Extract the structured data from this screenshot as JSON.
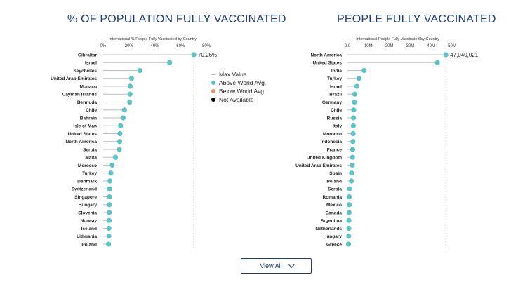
{
  "colors": {
    "above": "#5cc3c6",
    "below": "#e89466",
    "na": "#000000",
    "title": "#1f3c7a",
    "stem": "#bdbdbd",
    "maxline": "#cccccc"
  },
  "legend": {
    "items": [
      {
        "label": "Max Value",
        "kind": "max"
      },
      {
        "label": "Above World Avg.",
        "kind": "above"
      },
      {
        "label": "Below World Avg.",
        "kind": "below"
      },
      {
        "label": "Not Available",
        "kind": "na"
      }
    ]
  },
  "view_all": {
    "label": "View All",
    "icon": "chevron-down-icon"
  },
  "chart_data": [
    {
      "type": "lollipop",
      "title": "% OF POPULATION FULLY VACCINATED",
      "axis_caption": "International % People Fully Vaccinated by Country",
      "ticks": [
        "0%",
        "20%",
        "40%",
        "60%",
        "80%"
      ],
      "tick_values": [
        0,
        20,
        40,
        60,
        80
      ],
      "xlim": [
        0,
        80
      ],
      "max_value": 70.26,
      "max_label": "70.26%",
      "categories": [
        "Gibraltar",
        "Israel",
        "Seychelles",
        "United Arab Emirates",
        "Monaco",
        "Cayman Islands",
        "Bermuda",
        "Chile",
        "Bahrain",
        "Isle of Man",
        "United States",
        "North America",
        "Serbia",
        "Malta",
        "Morocco",
        "Turkey",
        "Denmark",
        "Switzerland",
        "Singapore",
        "Hungary",
        "Slovenia",
        "Norway",
        "Iceland",
        "Lithuania",
        "Poland"
      ],
      "values": [
        70.26,
        51.5,
        28.5,
        22.0,
        21.0,
        20.8,
        20.5,
        16.5,
        15.5,
        13.5,
        13.0,
        12.8,
        12.5,
        9.5,
        7.0,
        6.0,
        5.2,
        5.0,
        4.9,
        4.8,
        4.7,
        4.6,
        4.5,
        4.4,
        4.2
      ]
    },
    {
      "type": "lollipop",
      "title": "PEOPLE FULLY VACCINATED",
      "axis_caption": "International People Fully Vaccinated by Country",
      "ticks": [
        "0.0",
        "10M",
        "20M",
        "30M",
        "40M",
        "50M"
      ],
      "tick_values": [
        0,
        10000000,
        20000000,
        30000000,
        40000000,
        50000000
      ],
      "xlim": [
        0,
        50000000
      ],
      "max_value": 47040021,
      "max_label": "47,040,021",
      "categories": [
        "North America",
        "United States",
        "India",
        "Turkey",
        "Israel",
        "Brazil",
        "Germany",
        "Chile",
        "Russia",
        "Italy",
        "Morocco",
        "Indonesia",
        "France",
        "United Kingdom",
        "United Arab Emirates",
        "Spain",
        "Poland",
        "Serbia",
        "Romania",
        "Mexico",
        "Canada",
        "Argentina",
        "Netherlands",
        "Hungary",
        "Greece"
      ],
      "values": [
        47040021,
        43000000,
        8000000,
        5500000,
        4500000,
        3500000,
        3300000,
        3000000,
        2900000,
        2800000,
        2700000,
        2600000,
        2500000,
        2400000,
        2300000,
        2000000,
        1900000,
        1000000,
        900000,
        900000,
        800000,
        700000,
        700000,
        600000,
        500000
      ]
    }
  ]
}
